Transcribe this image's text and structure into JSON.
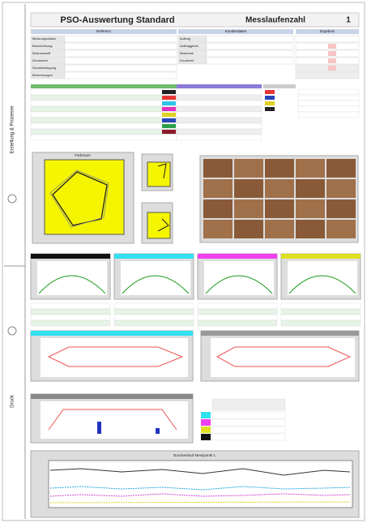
{
  "header": {
    "title": "PSO-Auswertung Standard",
    "label": "Messlaufenzahl",
    "number": "1"
  },
  "sidebar": {
    "top": "Erstellung & Prozesse",
    "bottom": "Druck"
  },
  "sections": {
    "reference": "Referenz",
    "customer": "Kundendaten",
    "result": "Ergebnis"
  },
  "form": {
    "left": [
      "Messungsdatum",
      "Beschreibung",
      "Bedruckstoff",
      "Druckwerk",
      "Druckbedingung",
      "Bemerkungen"
    ],
    "right": [
      "Auftrag",
      "Auftraggeber",
      "Maschine",
      "Druckerei"
    ]
  },
  "panels": {
    "gamut": "Farbraum",
    "trend": "Druckverlauf Messpunkt 1"
  }
}
